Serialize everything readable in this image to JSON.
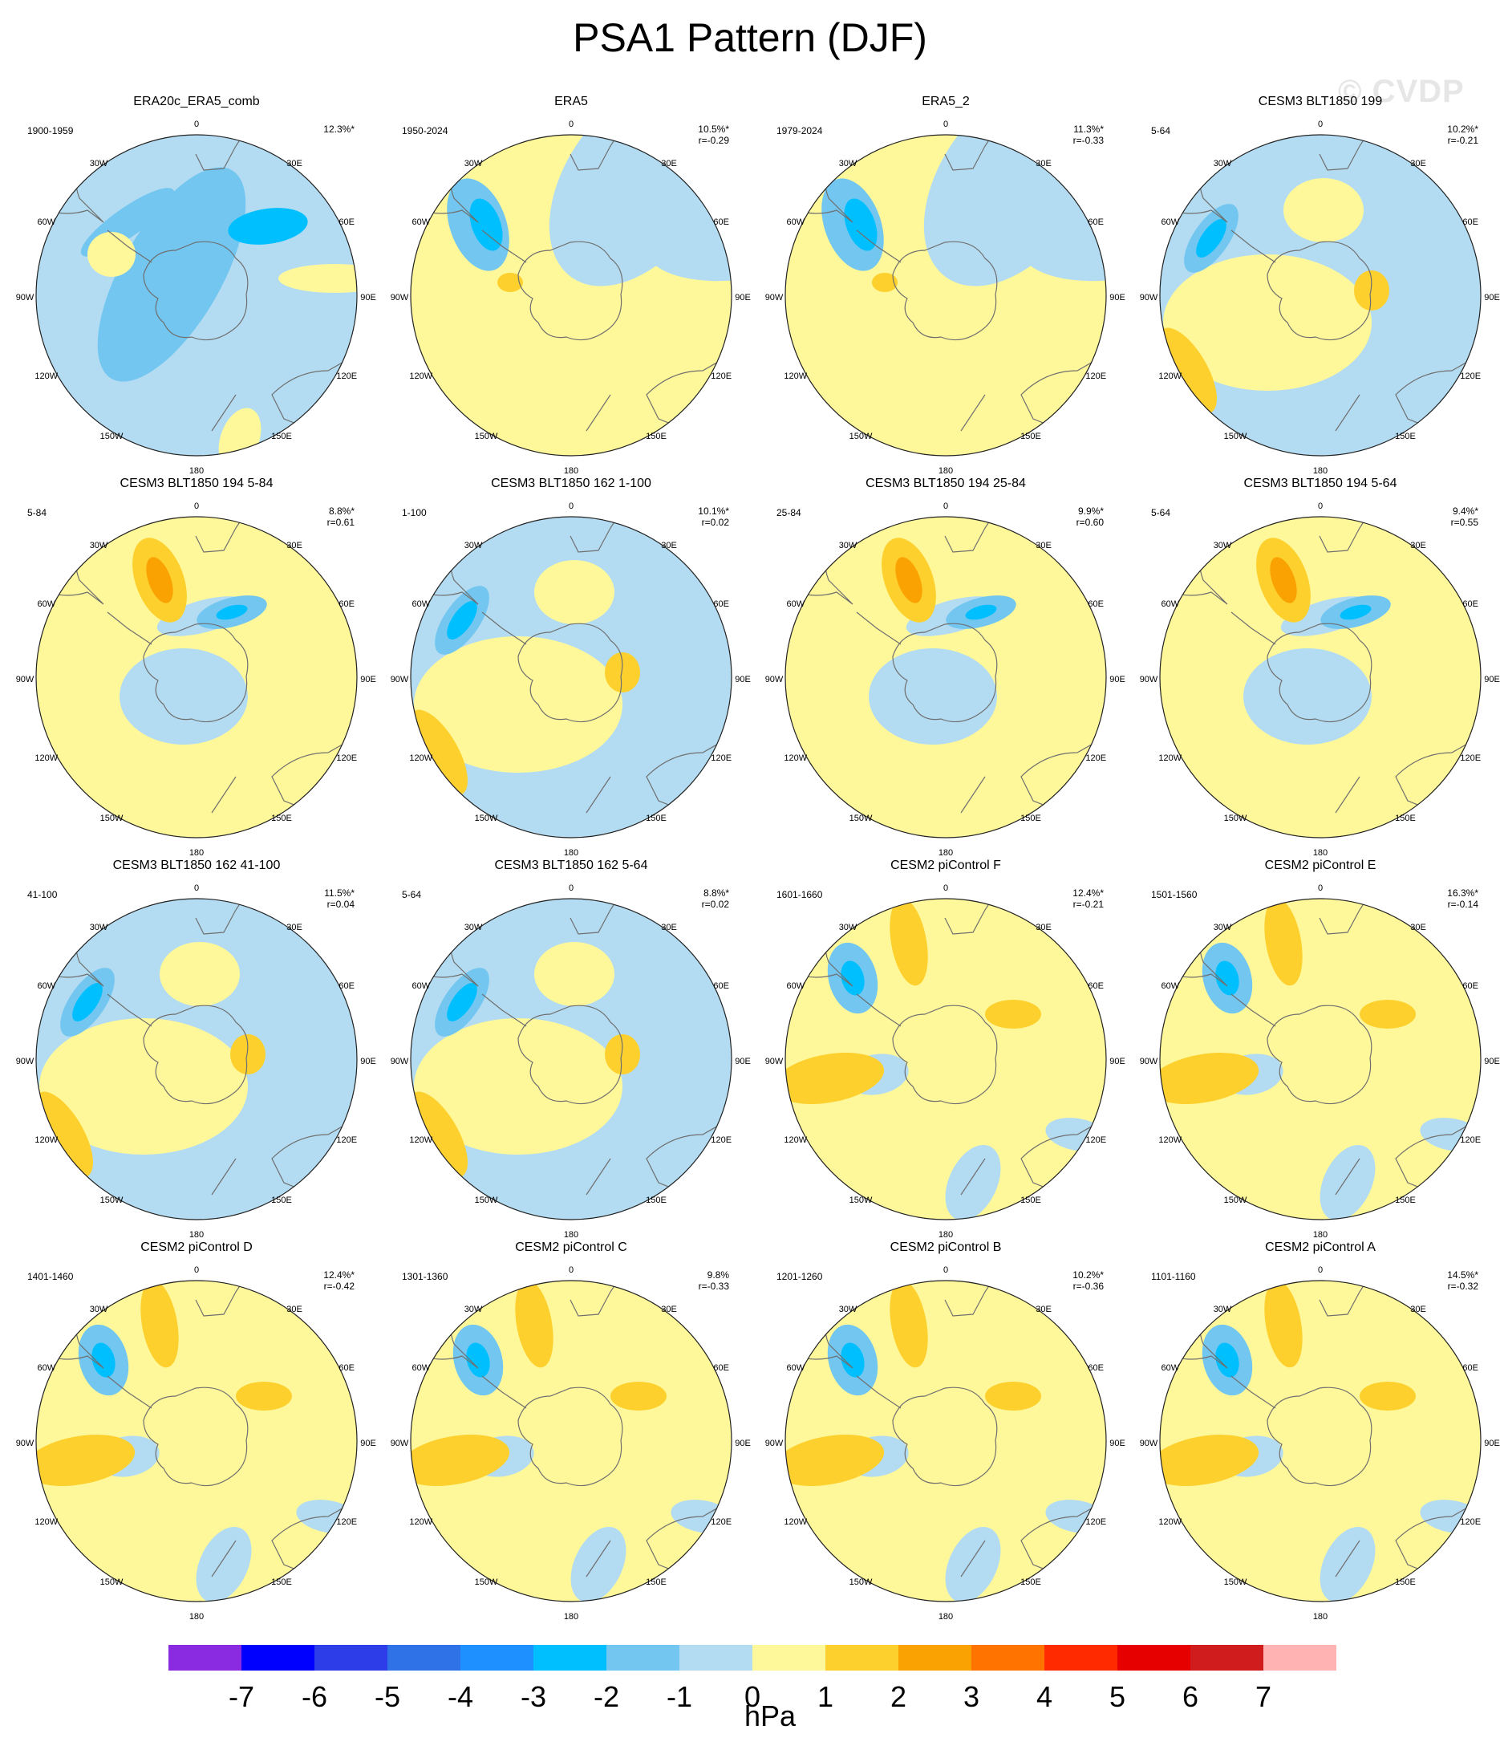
{
  "title": "PSA1 Pattern (DJF)",
  "watermark": "© CVDP",
  "units": "hPa",
  "colors": {
    "neg3": "#00bfff",
    "neg2": "#72c6f0",
    "neg1": "#b3dcf2",
    "pos0": "#fff89a",
    "pos1": "#fdd02e",
    "pos2": "#f9a202",
    "land_outline": "#6f6f6f",
    "frame": "#222222"
  },
  "colorbar": {
    "colors": [
      "#8a2be2",
      "#0000ff",
      "#2d3ee8",
      "#2f72e8",
      "#1e90ff",
      "#00bfff",
      "#72c6f0",
      "#b3dcf2",
      "#fff89a",
      "#fdd02e",
      "#f9a202",
      "#ff7300",
      "#ff2a00",
      "#e60000",
      "#d01c1c",
      "#ffb3b3"
    ],
    "ticks": [
      "-7",
      "-6",
      "-5",
      "-4",
      "-3",
      "-2",
      "-1",
      "0",
      "1",
      "2",
      "3",
      "4",
      "5",
      "6",
      "7"
    ]
  },
  "longitude_labels": {
    "top": "0",
    "tr": "30E",
    "rt": "60E",
    "right": "90E",
    "rb": "120E",
    "br": "150E",
    "bottom": "180",
    "bl": "150W",
    "lb": "120W",
    "left": "90W",
    "lt": "60W",
    "tl": "30W"
  },
  "panels": [
    {
      "title": "ERA20c_ERA5_comb",
      "period": "1900-1959",
      "pct": "12.3%*",
      "r": "",
      "style": 0
    },
    {
      "title": "ERA5",
      "period": "1950-2024",
      "pct": "10.5%*",
      "r": "r=-0.29",
      "style": 1
    },
    {
      "title": "ERA5_2",
      "period": "1979-2024",
      "pct": "11.3%*",
      "r": "r=-0.33",
      "style": 1
    },
    {
      "title": "CESM3 BLT1850 199",
      "period": "5-64",
      "pct": "10.2%*",
      "r": "r=-0.21",
      "style": 2
    },
    {
      "title": "CESM3 BLT1850 194 5-84",
      "period": "5-84",
      "pct": "8.8%*",
      "r": "r=0.61",
      "style": 3
    },
    {
      "title": "CESM3 BLT1850 162 1-100",
      "period": "1-100",
      "pct": "10.1%*",
      "r": "r=0.02",
      "style": 2
    },
    {
      "title": "CESM3 BLT1850 194 25-84",
      "period": "25-84",
      "pct": "9.9%*",
      "r": "r=0.60",
      "style": 3
    },
    {
      "title": "CESM3 BLT1850 194 5-64",
      "period": "5-64",
      "pct": "9.4%*",
      "r": "r=0.55",
      "style": 3
    },
    {
      "title": "CESM3 BLT1850 162 41-100",
      "period": "41-100",
      "pct": "11.5%*",
      "r": "r=0.04",
      "style": 2
    },
    {
      "title": "CESM3 BLT1850 162 5-64",
      "period": "5-64",
      "pct": "8.8%*",
      "r": "r=0.02",
      "style": 2
    },
    {
      "title": "CESM2 piControl F",
      "period": "1601-1660",
      "pct": "12.4%*",
      "r": "r=-0.21",
      "style": 4
    },
    {
      "title": "CESM2 piControl E",
      "period": "1501-1560",
      "pct": "16.3%*",
      "r": "r=-0.14",
      "style": 4
    },
    {
      "title": "CESM2 piControl D",
      "period": "1401-1460",
      "pct": "12.4%*",
      "r": "r=-0.42",
      "style": 4
    },
    {
      "title": "CESM2 piControl C",
      "period": "1301-1360",
      "pct": "9.8%",
      "r": "r=-0.33",
      "style": 4
    },
    {
      "title": "CESM2 piControl B",
      "period": "1201-1260",
      "pct": "10.2%*",
      "r": "r=-0.36",
      "style": 4
    },
    {
      "title": "CESM2 piControl A",
      "period": "1101-1160",
      "pct": "14.5%*",
      "r": "r=-0.32",
      "style": 4
    }
  ]
}
